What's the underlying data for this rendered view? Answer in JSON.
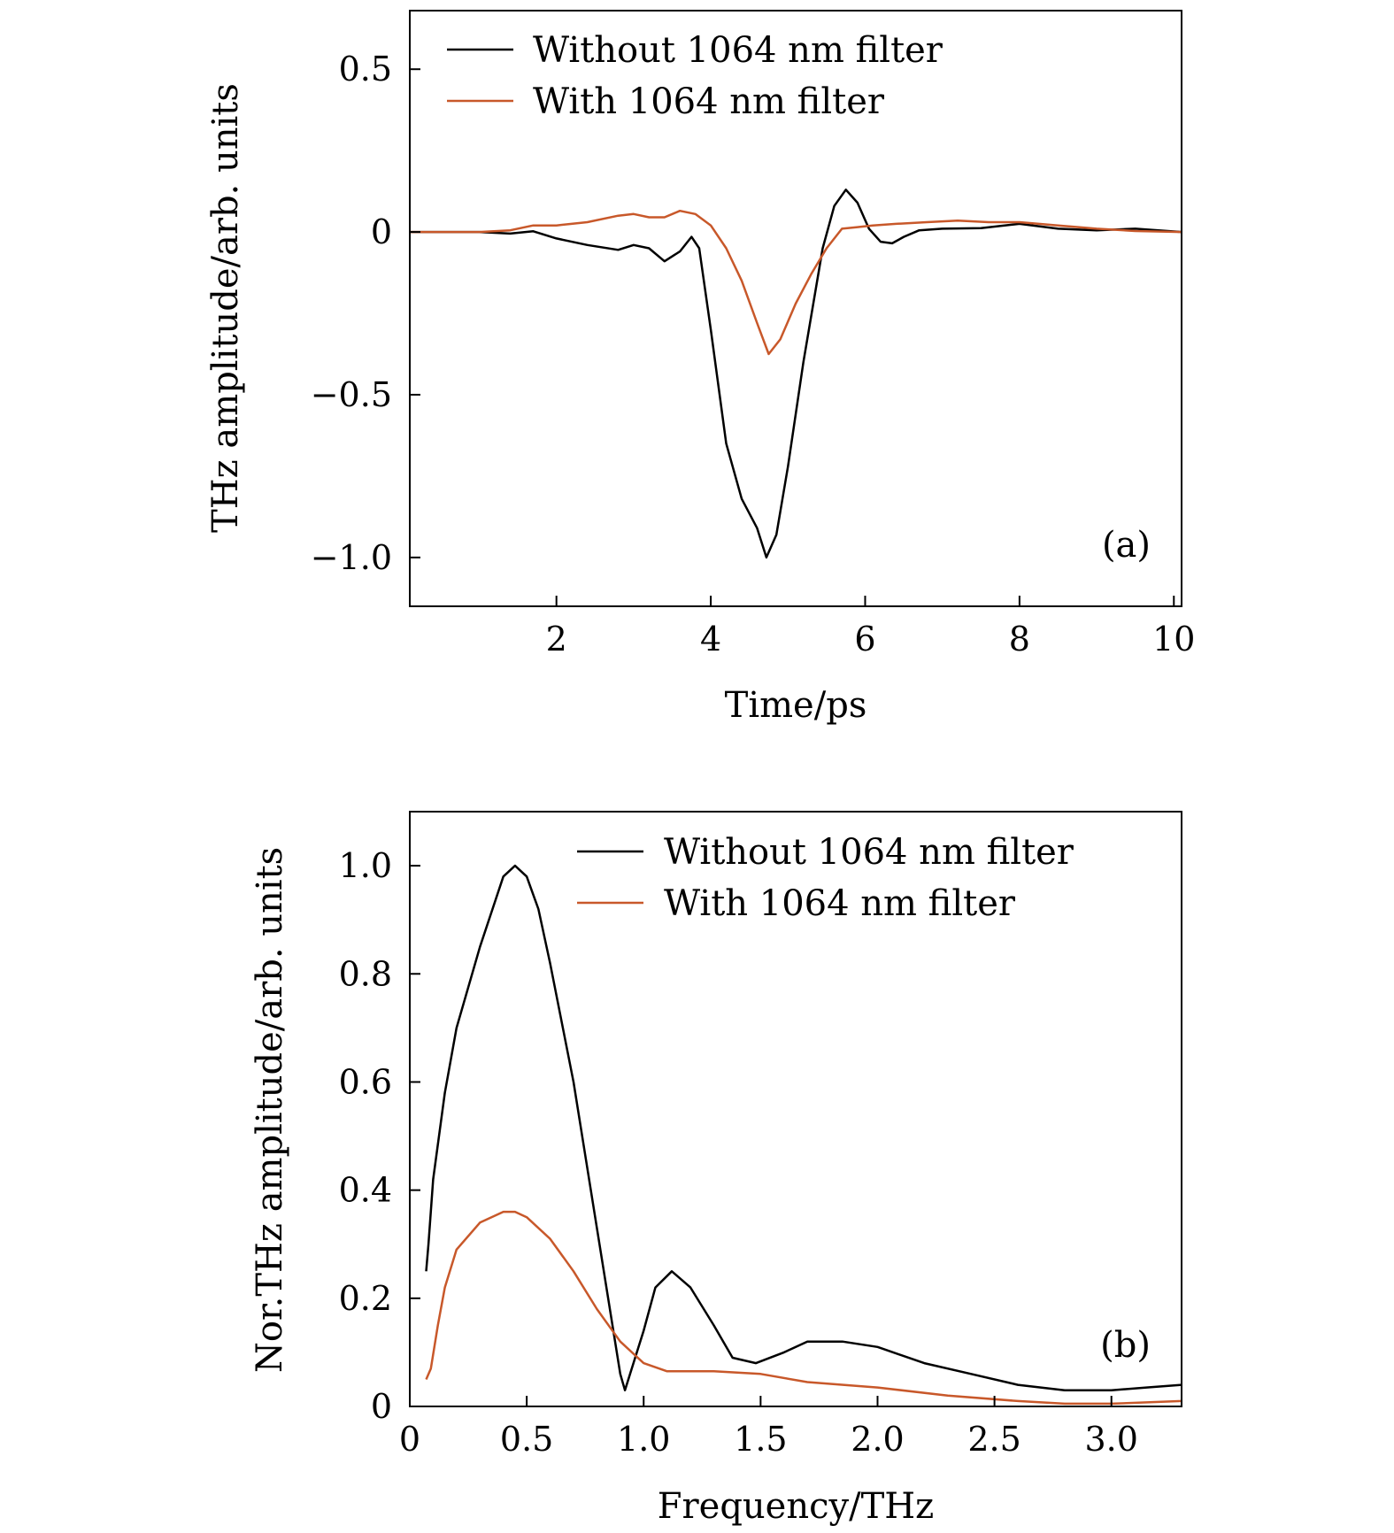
{
  "colors": {
    "without": "#000000",
    "with": "#c8582a"
  },
  "chart_data": [
    {
      "type": "line",
      "panel_label": "(a)",
      "xlabel": "Time/ps",
      "ylabel": "THz amplitude/arb. units",
      "xlim": [
        0.1,
        10.1
      ],
      "ylim": [
        -1.15,
        0.68
      ],
      "xticks": [
        2,
        4,
        6,
        8,
        10
      ],
      "xtick_labels": [
        "2",
        "4",
        "6",
        "8",
        "10"
      ],
      "yticks": [
        0.5,
        0,
        -0.5,
        -1.0
      ],
      "ytick_labels": [
        "0.5",
        "0",
        "−0.5",
        "−1.0"
      ],
      "legend_position": "top-right",
      "series": [
        {
          "name": "Without 1064 nm filter",
          "x": [
            0.1,
            1.0,
            1.4,
            1.7,
            2.0,
            2.4,
            2.8,
            3.0,
            3.2,
            3.4,
            3.6,
            3.75,
            3.85,
            4.0,
            4.2,
            4.4,
            4.6,
            4.72,
            4.85,
            5.0,
            5.2,
            5.45,
            5.6,
            5.75,
            5.9,
            6.05,
            6.2,
            6.35,
            6.5,
            6.7,
            7.0,
            7.5,
            8.0,
            8.5,
            9.0,
            9.5,
            10.1
          ],
          "y": [
            0,
            0,
            -0.005,
            0.002,
            -0.02,
            -0.04,
            -0.055,
            -0.04,
            -0.05,
            -0.09,
            -0.06,
            -0.015,
            -0.05,
            -0.3,
            -0.65,
            -0.82,
            -0.91,
            -1.0,
            -0.93,
            -0.72,
            -0.4,
            -0.05,
            0.08,
            0.13,
            0.09,
            0.01,
            -0.03,
            -0.035,
            -0.015,
            0.005,
            0.01,
            0.012,
            0.025,
            0.01,
            0.005,
            0.01,
            0
          ]
        },
        {
          "name": "With 1064 nm filter",
          "x": [
            0.1,
            1.0,
            1.4,
            1.7,
            2.0,
            2.4,
            2.8,
            3.0,
            3.2,
            3.4,
            3.6,
            3.8,
            4.0,
            4.2,
            4.4,
            4.6,
            4.75,
            4.9,
            5.1,
            5.3,
            5.5,
            5.7,
            5.9,
            6.1,
            6.4,
            6.8,
            7.2,
            7.6,
            8.0,
            8.5,
            9.0,
            9.5,
            10.1
          ],
          "y": [
            0,
            0,
            0.005,
            0.02,
            0.02,
            0.03,
            0.05,
            0.055,
            0.045,
            0.045,
            0.065,
            0.055,
            0.02,
            -0.05,
            -0.15,
            -0.28,
            -0.375,
            -0.33,
            -0.22,
            -0.13,
            -0.05,
            0.01,
            0.015,
            0.02,
            0.025,
            0.03,
            0.035,
            0.03,
            0.03,
            0.02,
            0.01,
            0.003,
            0
          ]
        }
      ]
    },
    {
      "type": "line",
      "panel_label": "(b)",
      "xlabel": "Frequency/THz",
      "ylabel": "Nor.THz amplitude/arb. units",
      "xlim": [
        0,
        3.3
      ],
      "ylim": [
        0,
        1.1
      ],
      "xticks": [
        0,
        0.5,
        1.0,
        1.5,
        2.0,
        2.5,
        3.0
      ],
      "xtick_labels": [
        "0",
        "0.5",
        "1.0",
        "1.5",
        "2.0",
        "2.5",
        "3.0"
      ],
      "yticks": [
        0,
        0.2,
        0.4,
        0.6,
        0.8,
        1.0
      ],
      "ytick_labels": [
        "0",
        "0.2",
        "0.4",
        "0.6",
        "0.8",
        "1.0"
      ],
      "legend_position": "top-right",
      "series": [
        {
          "name": "Without 1064 nm filter",
          "x": [
            0.07,
            0.08,
            0.1,
            0.15,
            0.2,
            0.3,
            0.4,
            0.45,
            0.5,
            0.55,
            0.6,
            0.7,
            0.8,
            0.9,
            0.92,
            1.0,
            1.05,
            1.12,
            1.2,
            1.3,
            1.38,
            1.48,
            1.6,
            1.7,
            1.85,
            2.0,
            2.2,
            2.4,
            2.6,
            2.8,
            3.0,
            3.15,
            3.3
          ],
          "y": [
            0.25,
            0.3,
            0.42,
            0.58,
            0.7,
            0.85,
            0.98,
            1.0,
            0.98,
            0.92,
            0.82,
            0.6,
            0.33,
            0.06,
            0.03,
            0.14,
            0.22,
            0.25,
            0.22,
            0.15,
            0.09,
            0.08,
            0.1,
            0.12,
            0.12,
            0.11,
            0.08,
            0.06,
            0.04,
            0.03,
            0.03,
            0.035,
            0.04
          ]
        },
        {
          "name": "With 1064 nm filter",
          "x": [
            0.07,
            0.09,
            0.12,
            0.15,
            0.2,
            0.3,
            0.4,
            0.45,
            0.5,
            0.6,
            0.7,
            0.8,
            0.9,
            1.0,
            1.1,
            1.2,
            1.3,
            1.5,
            1.7,
            2.0,
            2.3,
            2.6,
            2.8,
            3.0,
            3.3
          ],
          "y": [
            0.05,
            0.07,
            0.15,
            0.22,
            0.29,
            0.34,
            0.36,
            0.36,
            0.35,
            0.31,
            0.25,
            0.18,
            0.12,
            0.08,
            0.065,
            0.065,
            0.065,
            0.06,
            0.045,
            0.035,
            0.02,
            0.01,
            0.005,
            0.005,
            0.01
          ]
        }
      ]
    }
  ]
}
